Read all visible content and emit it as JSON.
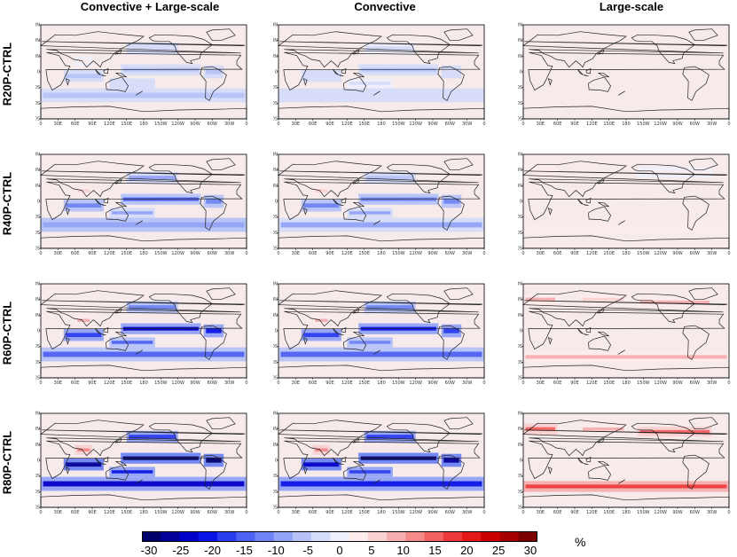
{
  "chart_data": {
    "type": "heatmap",
    "columns": [
      "Convective + Large-scale",
      "Convective",
      "Large-scale"
    ],
    "rows": [
      "R20P-CTRL",
      "R40P-CTRL",
      "R60P-CTRL",
      "R80P-CTRL"
    ],
    "lon_ticks": [
      "0",
      "30E",
      "60E",
      "90E",
      "120E",
      "150E",
      "180",
      "150W",
      "120W",
      "90W",
      "60W",
      "30W",
      "0"
    ],
    "lat_ticks": [
      "90N",
      "60N",
      "30N",
      "0",
      "30S",
      "60S",
      "90S"
    ],
    "colorbar": {
      "ticks": [
        "-30",
        "-25",
        "-20",
        "-15",
        "-10",
        "-5",
        "0",
        "5",
        "10",
        "15",
        "20",
        "25",
        "30"
      ],
      "unit": "%",
      "colors": [
        "#00006b",
        "#000099",
        "#0000c8",
        "#0a14e6",
        "#2a3cf0",
        "#4c62f2",
        "#6f84f4",
        "#93a4f6",
        "#b6c2f8",
        "#d6ddfa",
        "#eef0fc",
        "#fcecec",
        "#fad2d2",
        "#f7b0b0",
        "#f48a8a",
        "#f06262",
        "#ec3a3a",
        "#e41818",
        "#cc0000",
        "#a80000",
        "#7a0000"
      ]
    },
    "panel_intensity": [
      [
        0.2,
        0.15,
        0.03
      ],
      [
        0.45,
        0.4,
        0.12
      ],
      [
        0.7,
        0.65,
        0.3
      ],
      [
        1.0,
        0.95,
        0.55
      ]
    ]
  },
  "colors": {
    "negative_strong": "#0000c8",
    "negative_weak": "#b6c2f8",
    "positive_strong": "#e41818",
    "positive_weak": "#fad2d2",
    "background": "#f6eaea",
    "coast": "#222222"
  }
}
